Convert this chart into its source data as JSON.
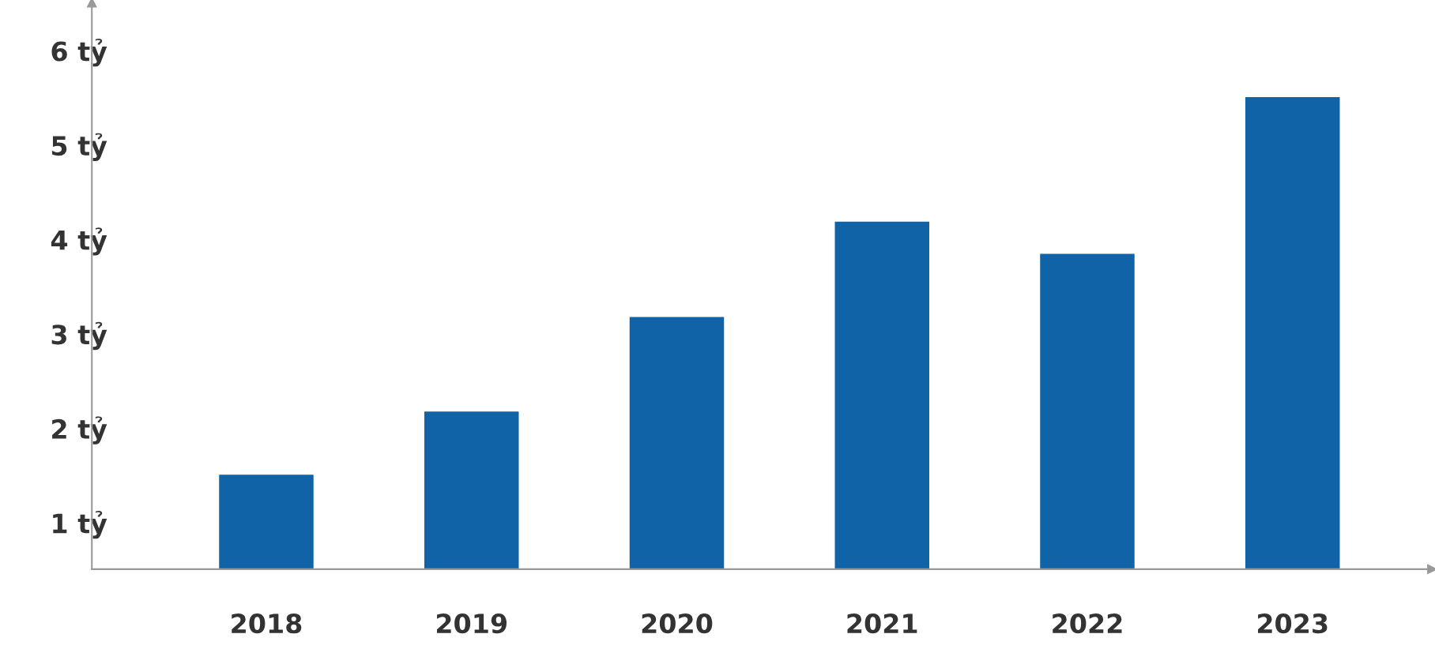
{
  "chart_data": {
    "type": "bar",
    "categories": [
      "2018",
      "2019",
      "2020",
      "2021",
      "2022",
      "2023"
    ],
    "values": [
      1.5,
      2.17,
      3.17,
      4.18,
      3.84,
      5.5
    ],
    "color": "#1063a6",
    "ylim": [
      0.5,
      6.5
    ],
    "yticks": [
      {
        "value": 1,
        "label": "1 tỷ"
      },
      {
        "value": 2,
        "label": "2 tỷ"
      },
      {
        "value": 3,
        "label": "3 tỷ"
      },
      {
        "value": 4,
        "label": "4 tỷ"
      },
      {
        "value": 5,
        "label": "5 tỷ"
      },
      {
        "value": 6,
        "label": "6 tỷ"
      }
    ],
    "grid": false,
    "legend": false
  }
}
